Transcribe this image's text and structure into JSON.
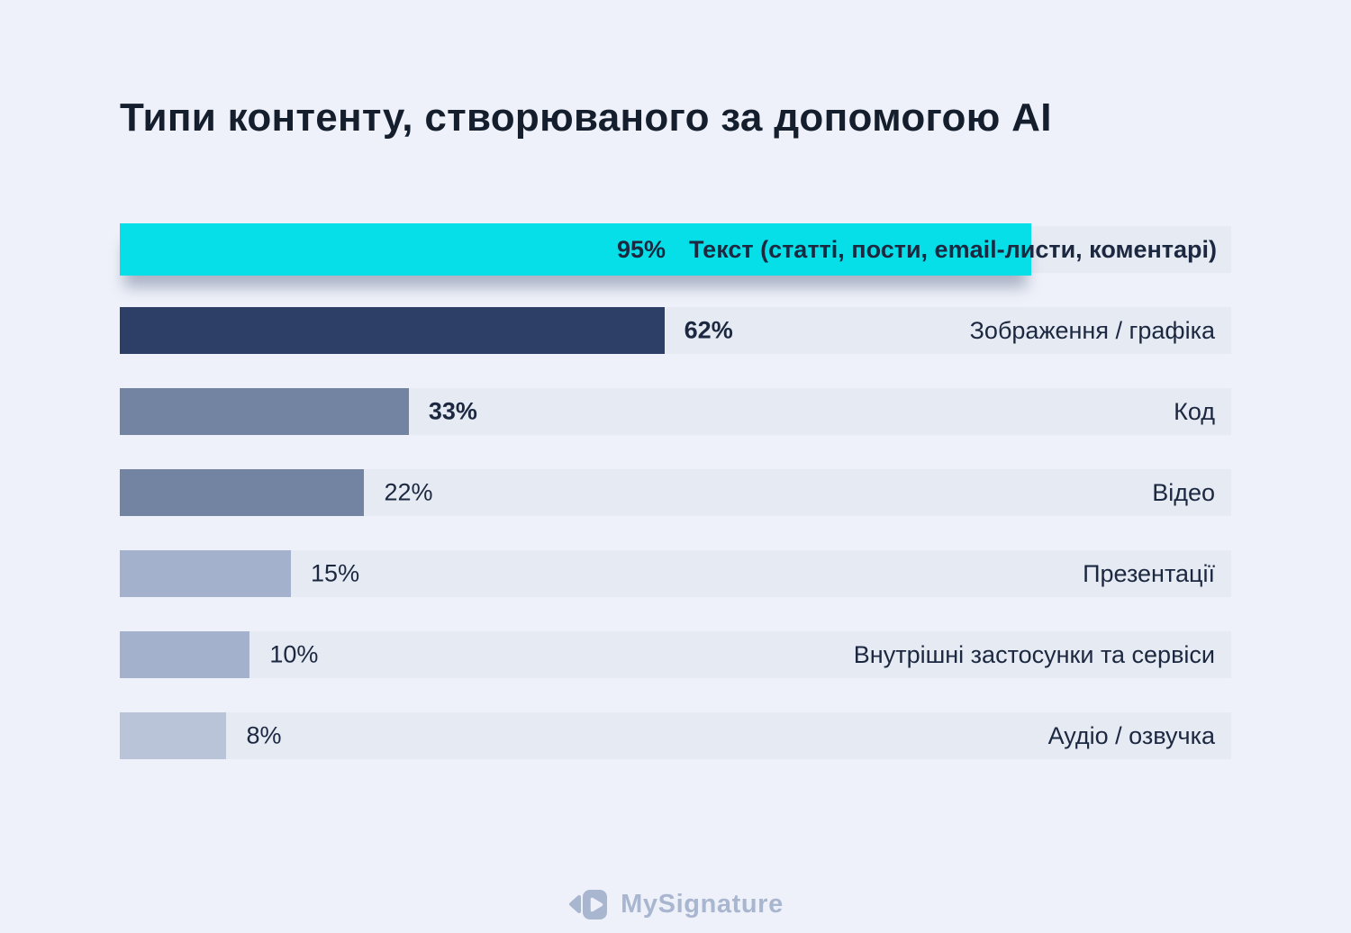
{
  "page": {
    "background": "#eef1f9",
    "title_color": "#141e2d",
    "text_color": "#1c2840"
  },
  "chart_data": {
    "type": "bar",
    "orientation": "horizontal",
    "title": "Типи контенту, створюваного за допомогою AI",
    "value_suffix": "%",
    "xlim": [
      0,
      100
    ],
    "grid": false,
    "legend": false,
    "track_color": "#e5eaf3",
    "categories": [
      "Текст (статті, пости, email-листи, коментарі)",
      "Зображення / графіка",
      "Код",
      "Відео",
      "Презентації",
      "Внутрішні застосунки та сервіси",
      "Аудіо / озвучка"
    ],
    "values": [
      95,
      62,
      33,
      22,
      15,
      10,
      8
    ],
    "items": [
      {
        "label": "Текст (статті, пости, email-листи, коментарі)",
        "value": 95,
        "value_label": "95%",
        "color": "#06dfe8",
        "bar_width_pct": 82,
        "value_bold": true,
        "label_bold": true,
        "inline_label": true,
        "lifted": true
      },
      {
        "label": "Зображення / графіка",
        "value": 62,
        "value_label": "62%",
        "color": "#2d3f66",
        "bar_width_pct": 49,
        "value_bold": true,
        "label_bold": false,
        "inline_label": false,
        "lifted": false
      },
      {
        "label": "Код",
        "value": 33,
        "value_label": "33%",
        "color": "#7384a3",
        "bar_width_pct": 26,
        "value_bold": true,
        "label_bold": false,
        "inline_label": false,
        "lifted": false
      },
      {
        "label": "Відео",
        "value": 22,
        "value_label": "22%",
        "color": "#7384a3",
        "bar_width_pct": 22,
        "value_bold": false,
        "label_bold": false,
        "inline_label": false,
        "lifted": false
      },
      {
        "label": "Презентації",
        "value": 15,
        "value_label": "15%",
        "color": "#a4b1cc",
        "bar_width_pct": 15.4,
        "value_bold": false,
        "label_bold": false,
        "inline_label": false,
        "lifted": false
      },
      {
        "label": "Внутрішні застосунки та сервіси",
        "value": 10,
        "value_label": "10%",
        "color": "#a4b1cc",
        "bar_width_pct": 11.7,
        "value_bold": false,
        "label_bold": false,
        "inline_label": false,
        "lifted": false
      },
      {
        "label": "Аудіо / озвучка",
        "value": 8,
        "value_label": "8%",
        "color": "#b9c4d8",
        "bar_width_pct": 9.6,
        "value_bold": false,
        "label_bold": false,
        "inline_label": false,
        "lifted": false
      }
    ]
  },
  "footer": {
    "brand": "MySignature",
    "brand_color": "#a9b6cf"
  }
}
